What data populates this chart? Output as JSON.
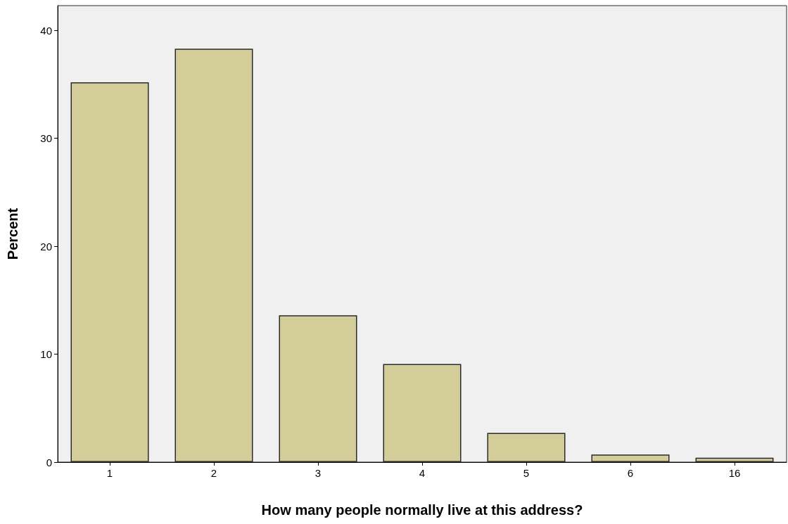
{
  "chart_data": {
    "type": "bar",
    "xlabel": "How many people normally live at this address?",
    "ylabel": "Percent",
    "categories": [
      "1",
      "2",
      "3",
      "4",
      "5",
      "6",
      "16"
    ],
    "values": [
      35.2,
      38.3,
      13.6,
      9.1,
      2.7,
      0.7,
      0.4
    ],
    "color": "#d3ce99",
    "ylim": [
      0,
      42.3
    ],
    "yticks": [
      0,
      10,
      20,
      30,
      40
    ],
    "grid": false
  }
}
